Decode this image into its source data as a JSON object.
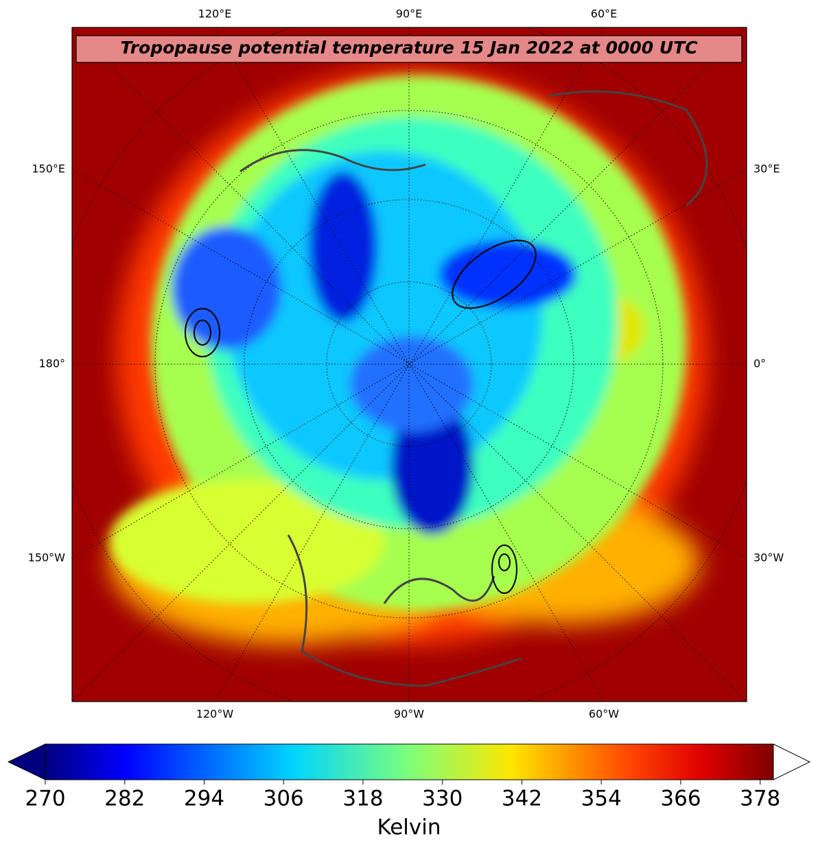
{
  "map": {
    "title": "Tropopause potential temperature 15 Jan 2022 at 0000 UTC",
    "lon_labels": {
      "top": [
        "120°E",
        "90°E",
        "60°E"
      ],
      "bottom": [
        "120°W",
        "90°W",
        "60°W"
      ],
      "left": [
        "150°E",
        "180°",
        "150°W"
      ],
      "right": [
        "30°E",
        "0°",
        "30°W"
      ]
    }
  },
  "colorbar": {
    "label": "Kelvin",
    "range": [
      270,
      380
    ],
    "ticks": [
      270,
      282,
      294,
      306,
      318,
      330,
      342,
      354,
      366,
      378
    ]
  }
}
